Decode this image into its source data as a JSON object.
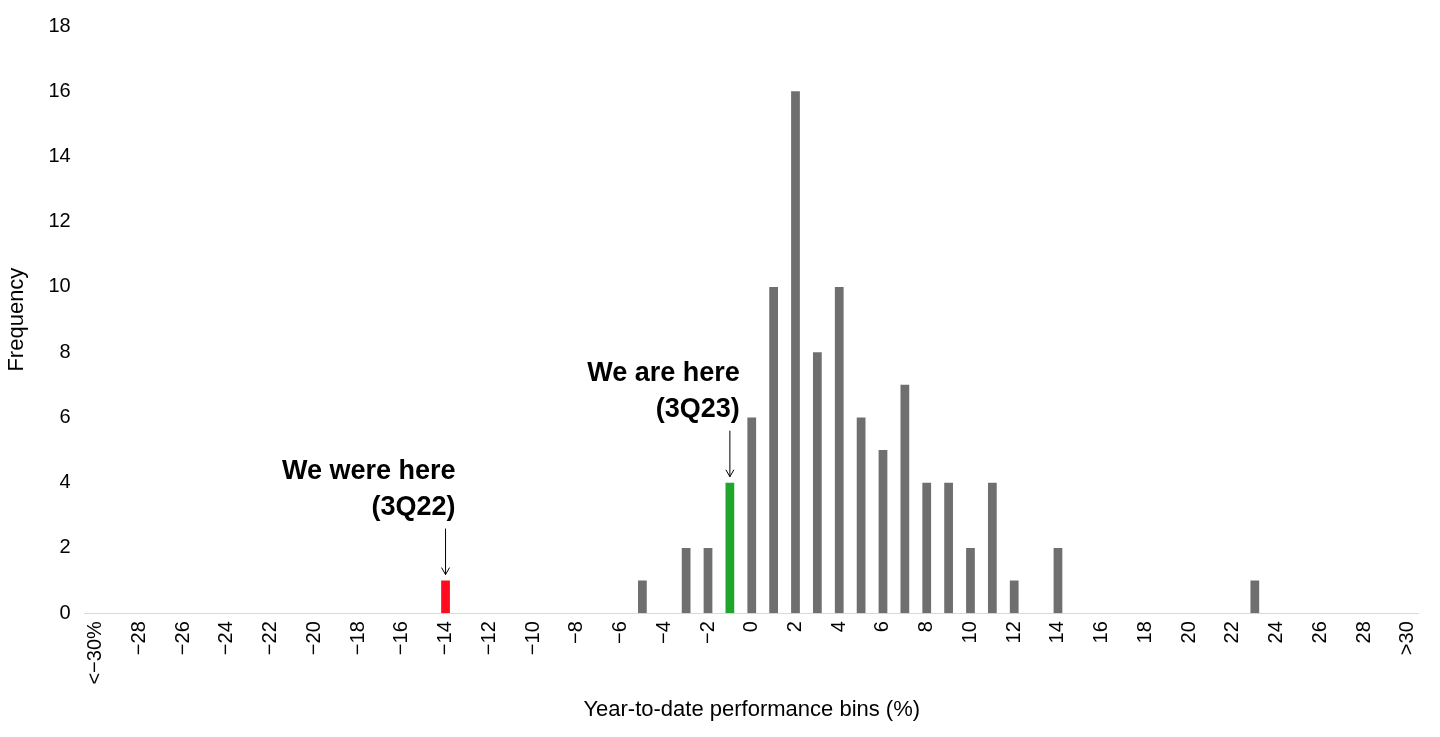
{
  "chart_data": {
    "type": "bar",
    "xlabel": "Year-to-date performance bins (%)",
    "ylabel": "Frequency",
    "categories": [
      "<−30%",
      null,
      "−28",
      null,
      "−26",
      null,
      "−24",
      null,
      "−22",
      null,
      "−20",
      null,
      "−18",
      null,
      "−16",
      null,
      "−14",
      null,
      "−12",
      null,
      "−10",
      null,
      "−8",
      null,
      "−6",
      null,
      "−4",
      null,
      "−2",
      null,
      "0",
      null,
      "2",
      null,
      "4",
      null,
      "6",
      null,
      "8",
      null,
      "10",
      null,
      "12",
      null,
      "14",
      null,
      "16",
      null,
      "18",
      null,
      "20",
      null,
      "22",
      null,
      "24",
      null,
      "26",
      null,
      "28",
      null,
      ">30"
    ],
    "values": [
      0,
      0,
      0,
      0,
      0,
      0,
      0,
      0,
      0,
      0,
      0,
      0,
      0,
      0,
      0,
      0,
      1,
      0,
      0,
      0,
      0,
      0,
      0,
      0,
      0,
      1,
      0,
      2,
      2,
      4,
      6,
      10,
      16,
      8,
      10,
      6,
      5,
      7,
      4,
      4,
      2,
      4,
      1,
      0,
      2,
      0,
      0,
      0,
      0,
      0,
      0,
      0,
      0,
      1,
      0,
      0,
      0,
      0,
      0,
      0,
      0
    ],
    "colors": [
      "#6f6f6f",
      "#6f6f6f",
      "#6f6f6f",
      "#6f6f6f",
      "#6f6f6f",
      "#6f6f6f",
      "#6f6f6f",
      "#6f6f6f",
      "#6f6f6f",
      "#6f6f6f",
      "#6f6f6f",
      "#6f6f6f",
      "#6f6f6f",
      "#6f6f6f",
      "#6f6f6f",
      "#6f6f6f",
      "#ff0a1e",
      "#6f6f6f",
      "#6f6f6f",
      "#6f6f6f",
      "#6f6f6f",
      "#6f6f6f",
      "#6f6f6f",
      "#6f6f6f",
      "#6f6f6f",
      "#6f6f6f",
      "#6f6f6f",
      "#6f6f6f",
      "#6f6f6f",
      "#22a52c",
      "#6f6f6f",
      "#6f6f6f",
      "#6f6f6f",
      "#6f6f6f",
      "#6f6f6f",
      "#6f6f6f",
      "#6f6f6f",
      "#6f6f6f",
      "#6f6f6f",
      "#6f6f6f",
      "#6f6f6f",
      "#6f6f6f",
      "#6f6f6f",
      "#6f6f6f",
      "#6f6f6f",
      "#6f6f6f",
      "#6f6f6f",
      "#6f6f6f",
      "#6f6f6f",
      "#6f6f6f",
      "#6f6f6f",
      "#6f6f6f",
      "#6f6f6f",
      "#6f6f6f",
      "#6f6f6f",
      "#6f6f6f",
      "#6f6f6f",
      "#6f6f6f",
      "#6f6f6f",
      "#6f6f6f",
      "#6f6f6f"
    ],
    "ylim": [
      0,
      18
    ],
    "yticks": [
      0,
      2,
      4,
      6,
      8,
      10,
      12,
      14,
      16,
      18
    ],
    "grid": false,
    "legend": false,
    "annotations": [
      {
        "text": "We were here\n(3Q22)",
        "x": "−14",
        "y": 1
      },
      "We are here\n(3Q23)"
    ]
  }
}
